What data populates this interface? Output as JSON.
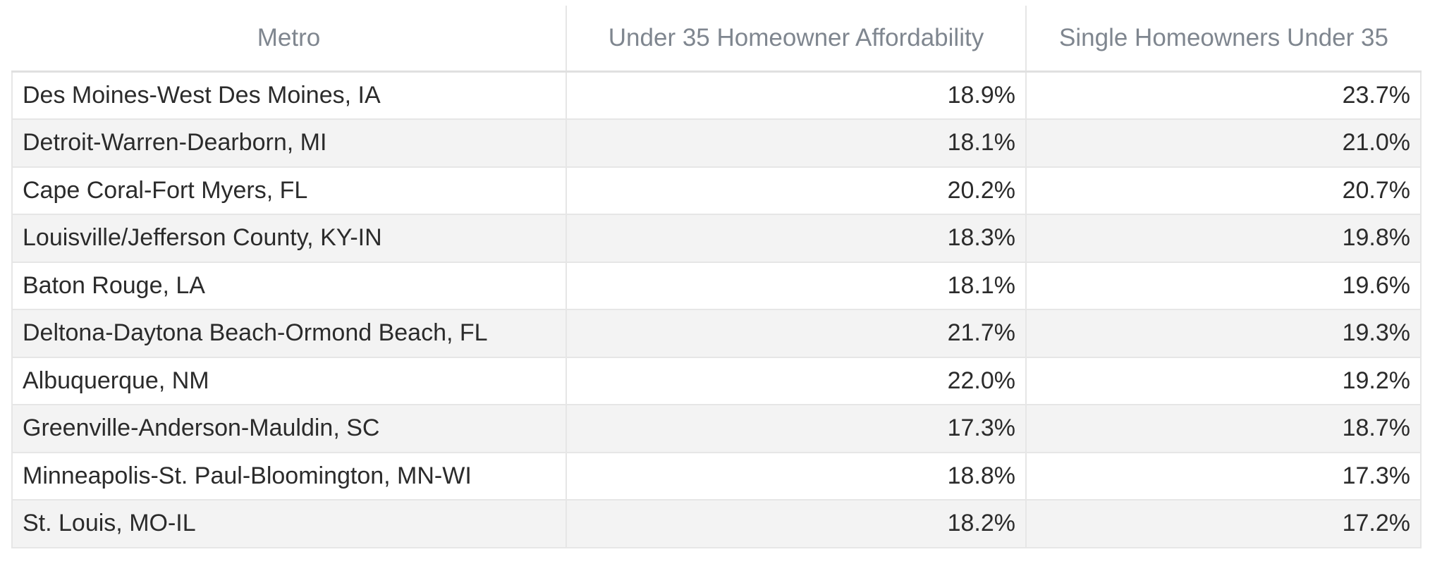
{
  "chart_data": {
    "type": "table",
    "columns": [
      "Metro",
      "Under 35 Homeowner Affordability",
      "Single Homeowners Under 35"
    ],
    "rows": [
      {
        "metro": "Des Moines-West Des Moines, IA",
        "under_35_affordability": "18.9%",
        "single_under_35": "23.7%"
      },
      {
        "metro": "Detroit-Warren-Dearborn, MI",
        "under_35_affordability": "18.1%",
        "single_under_35": "21.0%"
      },
      {
        "metro": "Cape Coral-Fort Myers, FL",
        "under_35_affordability": "20.2%",
        "single_under_35": "20.7%"
      },
      {
        "metro": "Louisville/Jefferson County, KY-IN",
        "under_35_affordability": "18.3%",
        "single_under_35": "19.8%"
      },
      {
        "metro": "Baton Rouge, LA",
        "under_35_affordability": "18.1%",
        "single_under_35": "19.6%"
      },
      {
        "metro": "Deltona-Daytona Beach-Ormond Beach, FL",
        "under_35_affordability": "21.7%",
        "single_under_35": "19.3%"
      },
      {
        "metro": "Albuquerque, NM",
        "under_35_affordability": "22.0%",
        "single_under_35": "19.2%"
      },
      {
        "metro": "Greenville-Anderson-Mauldin, SC",
        "under_35_affordability": "17.3%",
        "single_under_35": "18.7%"
      },
      {
        "metro": "Minneapolis-St. Paul-Bloomington, MN-WI",
        "under_35_affordability": "18.8%",
        "single_under_35": "17.3%"
      },
      {
        "metro": "St. Louis, MO-IL",
        "under_35_affordability": "18.2%",
        "single_under_35": "17.2%"
      }
    ]
  },
  "colors": {
    "header_text": "#7f868f",
    "body_text": "#2b2b2b",
    "stripe": "#f3f3f3",
    "border": "#e6e6e6"
  }
}
